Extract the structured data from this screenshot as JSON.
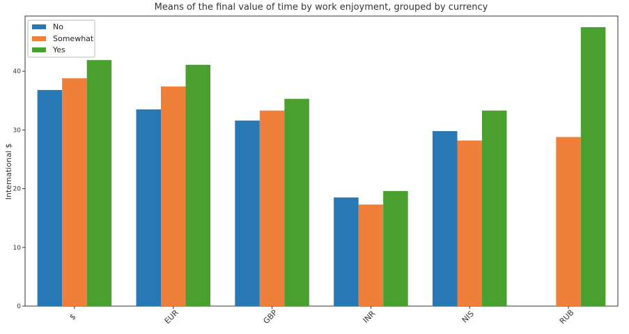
{
  "chart_data": {
    "type": "bar",
    "title": "Means of the final value of time by work enjoyment, grouped by currency",
    "xlabel": "",
    "ylabel": "International $",
    "categories": [
      "$",
      "EUR",
      "GBP",
      "INR",
      "NIS",
      "RUB"
    ],
    "series": [
      {
        "name": "No",
        "color": "#2878b5",
        "values": [
          36.8,
          33.5,
          31.6,
          18.5,
          29.8,
          null
        ]
      },
      {
        "name": "Somewhat",
        "color": "#f07f3a",
        "values": [
          38.8,
          37.4,
          33.3,
          17.3,
          28.2,
          28.8
        ]
      },
      {
        "name": "Yes",
        "color": "#4aa02f",
        "values": [
          41.9,
          41.1,
          35.3,
          19.6,
          33.3,
          47.5
        ]
      }
    ],
    "ylim": [
      0,
      49.4
    ],
    "yticks": [
      0,
      10,
      20,
      30,
      40
    ],
    "grid": false,
    "legend_position": "top-left"
  }
}
